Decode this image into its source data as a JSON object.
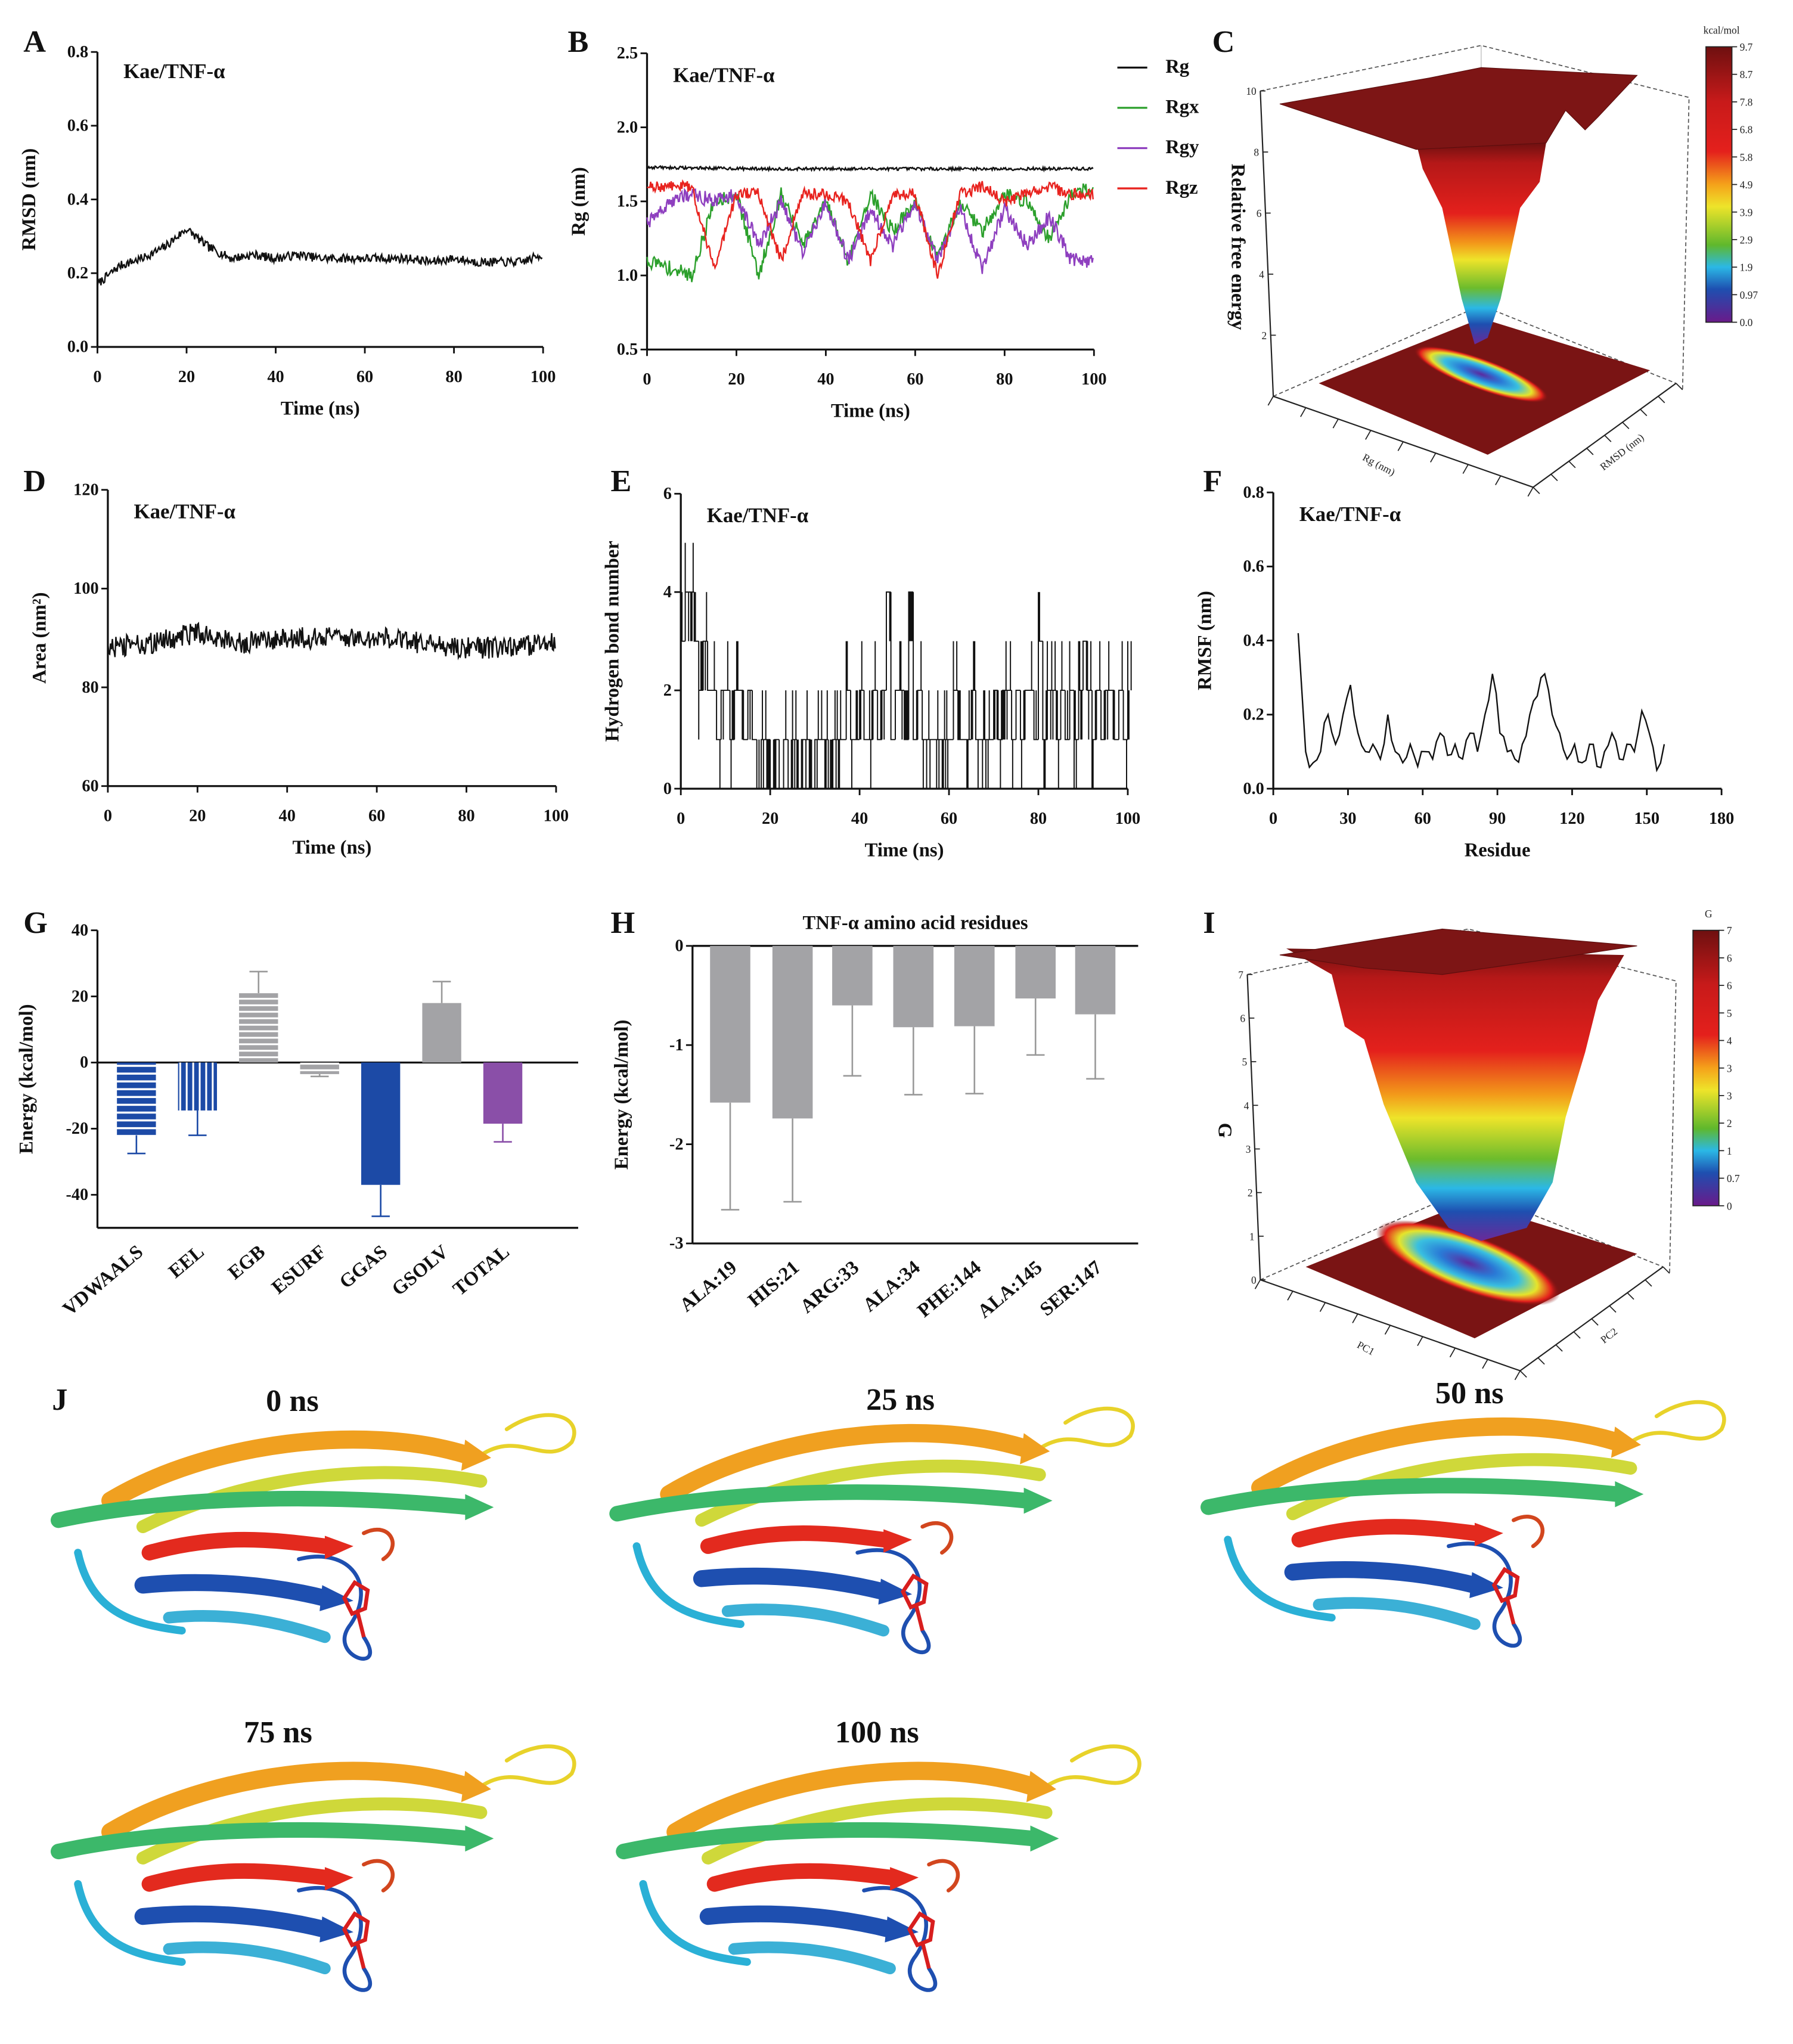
{
  "panel_letters": [
    "A",
    "B",
    "C",
    "D",
    "E",
    "F",
    "G",
    "H",
    "I",
    "J"
  ],
  "colors": {
    "black": "#111111",
    "rgx": "#2ca02c",
    "rgy": "#8e3fbf",
    "rgz": "#e8231f",
    "blue": "#1c4aa6",
    "gray": "#a3a3a6",
    "purple": "#8a4fa8"
  },
  "chart_data": [
    {
      "id": "A",
      "type": "line",
      "title": "Kae/TNF-α",
      "xlabel": "Time (ns)",
      "ylabel": "RMSD (nm)",
      "xlim": [
        0,
        100
      ],
      "ylim": [
        0,
        0.8
      ],
      "xticks": [
        "0",
        "20",
        "40",
        "60",
        "80",
        "100"
      ],
      "yticks": [
        "0.0",
        "0.2",
        "0.4",
        "0.6",
        "0.8"
      ],
      "noise_amplitude": 0.012,
      "series": [
        {
          "name": "RMSD",
          "color": "#111111",
          "x": [
            0,
            5,
            10,
            15,
            20,
            25,
            30,
            35,
            40,
            45,
            50,
            55,
            60,
            65,
            70,
            75,
            80,
            85,
            90,
            95,
            100
          ],
          "y": [
            0.17,
            0.22,
            0.24,
            0.27,
            0.32,
            0.27,
            0.24,
            0.25,
            0.24,
            0.25,
            0.24,
            0.24,
            0.24,
            0.24,
            0.24,
            0.23,
            0.24,
            0.23,
            0.23,
            0.23,
            0.25
          ]
        }
      ]
    },
    {
      "id": "B",
      "type": "line",
      "title": "Kae/TNF-α",
      "xlabel": "Time (ns)",
      "ylabel": "Rg (nm)",
      "xlim": [
        0,
        100
      ],
      "ylim": [
        0.5,
        2.5
      ],
      "xticks": [
        "0",
        "20",
        "40",
        "60",
        "80",
        "100"
      ],
      "yticks": [
        "0.5",
        "1.0",
        "1.5",
        "2.0",
        "2.5"
      ],
      "legend": "right",
      "series": [
        {
          "name": "Rg",
          "color": "#111111",
          "noise_amplitude": 0.01,
          "x": [
            0,
            25,
            50,
            75,
            100
          ],
          "y": [
            1.73,
            1.72,
            1.72,
            1.72,
            1.72
          ]
        },
        {
          "name": "Rgx",
          "color": "#2ca02c",
          "noise_amplitude": 0.05,
          "x": [
            0,
            5,
            10,
            15,
            20,
            25,
            30,
            35,
            40,
            45,
            50,
            55,
            60,
            65,
            70,
            75,
            80,
            85,
            90,
            95,
            100
          ],
          "y": [
            1.1,
            1.05,
            1.0,
            1.5,
            1.55,
            1.0,
            1.55,
            1.2,
            1.5,
            1.1,
            1.55,
            1.3,
            1.5,
            1.1,
            1.5,
            1.3,
            1.55,
            1.5,
            1.25,
            1.55,
            1.6
          ]
        },
        {
          "name": "Rgy",
          "color": "#8e3fbf",
          "noise_amplitude": 0.05,
          "x": [
            0,
            5,
            10,
            15,
            20,
            25,
            30,
            35,
            40,
            45,
            50,
            55,
            60,
            65,
            70,
            75,
            80,
            85,
            90,
            95,
            100
          ],
          "y": [
            1.35,
            1.5,
            1.55,
            1.5,
            1.55,
            1.2,
            1.5,
            1.15,
            1.5,
            1.1,
            1.45,
            1.2,
            1.5,
            1.1,
            1.45,
            1.05,
            1.45,
            1.2,
            1.4,
            1.1,
            1.1
          ]
        },
        {
          "name": "Rgz",
          "color": "#e8231f",
          "noise_amplitude": 0.04,
          "x": [
            0,
            5,
            10,
            15,
            20,
            25,
            30,
            35,
            40,
            45,
            50,
            55,
            60,
            65,
            70,
            75,
            80,
            85,
            90,
            95,
            100
          ],
          "y": [
            1.6,
            1.6,
            1.6,
            1.05,
            1.55,
            1.55,
            1.1,
            1.55,
            1.55,
            1.5,
            1.1,
            1.55,
            1.55,
            1.0,
            1.55,
            1.6,
            1.5,
            1.55,
            1.6,
            1.55,
            1.55
          ]
        }
      ]
    },
    {
      "id": "C",
      "type": "heatmap",
      "title": "",
      "zlabel": "Relative free energy",
      "xlabel": "Rg (nm)",
      "ylabel": "RMSD (nm)",
      "zticks": [
        "2",
        "4",
        "6",
        "8",
        "10"
      ],
      "colorbar_title": "kcal/mol",
      "colorbar_ticks": [
        "9.7",
        "8.7",
        "7.8",
        "6.8",
        "5.8",
        "4.9",
        "3.9",
        "2.9",
        "1.9",
        "0.97",
        "0.0"
      ]
    },
    {
      "id": "D",
      "type": "line",
      "title": "Kae/TNF-α",
      "xlabel": "Time (ns)",
      "ylabel": "Area (nm²)",
      "xlim": [
        0,
        100
      ],
      "ylim": [
        60,
        120
      ],
      "xticks": [
        "0",
        "20",
        "40",
        "60",
        "80",
        "100"
      ],
      "yticks": [
        "60",
        "80",
        "100",
        "120"
      ],
      "noise_amplitude": 2.2,
      "series": [
        {
          "name": "Area",
          "color": "#111111",
          "x": [
            0,
            10,
            20,
            30,
            40,
            50,
            60,
            70,
            80,
            90,
            100
          ],
          "y": [
            88,
            89,
            91,
            89,
            90,
            90,
            90,
            89,
            88,
            88,
            89
          ]
        }
      ]
    },
    {
      "id": "E",
      "type": "line",
      "title": "Kae/TNF-α",
      "xlabel": "Time (ns)",
      "ylabel": "Hydrogen bond number",
      "xlim": [
        0,
        100
      ],
      "ylim": [
        0,
        6
      ],
      "xticks": [
        "0",
        "20",
        "40",
        "60",
        "80",
        "100"
      ],
      "yticks": [
        "0",
        "2",
        "4",
        "6"
      ],
      "series": [
        {
          "name": "H-bonds",
          "color": "#111111",
          "x_step": 1,
          "y": [
            3,
            4,
            4,
            3,
            2,
            3,
            2,
            2,
            1,
            2,
            2,
            1,
            2,
            2,
            1,
            2,
            1,
            0,
            1,
            1,
            0,
            1,
            0,
            1,
            0,
            1,
            0,
            1,
            1,
            0,
            1,
            1,
            1,
            0,
            1,
            1,
            1,
            2,
            1,
            1,
            2,
            1,
            1,
            2,
            1,
            2,
            4,
            1,
            2,
            2,
            1,
            4,
            1,
            2,
            1,
            1,
            1,
            1,
            1,
            1,
            1,
            2,
            1,
            1,
            1,
            2,
            1,
            1,
            1,
            1,
            2,
            1,
            2,
            2,
            1,
            2,
            1,
            2,
            2,
            1,
            3,
            1,
            2,
            2,
            1,
            2,
            1,
            2,
            1,
            2,
            3,
            2,
            1,
            2,
            1,
            2,
            2,
            1,
            2,
            1,
            2
          ]
        }
      ]
    },
    {
      "id": "F",
      "type": "line",
      "title": "Kae/TNF-α",
      "xlabel": "Residue",
      "ylabel": "RMSF (nm)",
      "xlim": [
        0,
        180
      ],
      "ylim": [
        0,
        0.8
      ],
      "xticks": [
        "0",
        "30",
        "60",
        "90",
        "120",
        "150",
        "180"
      ],
      "yticks": [
        "0.0",
        "0.2",
        "0.4",
        "0.6",
        "0.8"
      ],
      "series": [
        {
          "name": "RMSF",
          "color": "#111111",
          "x": [
            10,
            13,
            16,
            19,
            22,
            25,
            28,
            31,
            34,
            37,
            40,
            43,
            46,
            49,
            52,
            55,
            58,
            61,
            64,
            67,
            70,
            73,
            76,
            79,
            82,
            85,
            88,
            91,
            94,
            97,
            100,
            103,
            106,
            109,
            112,
            115,
            118,
            121,
            124,
            127,
            130,
            133,
            136,
            139,
            142,
            145,
            148,
            151,
            154,
            157
          ],
          "y": [
            0.42,
            0.1,
            0.07,
            0.1,
            0.2,
            0.12,
            0.2,
            0.28,
            0.15,
            0.1,
            0.12,
            0.08,
            0.2,
            0.1,
            0.07,
            0.12,
            0.06,
            0.1,
            0.08,
            0.15,
            0.09,
            0.12,
            0.08,
            0.15,
            0.1,
            0.2,
            0.31,
            0.15,
            0.1,
            0.08,
            0.12,
            0.2,
            0.25,
            0.31,
            0.2,
            0.15,
            0.08,
            0.12,
            0.07,
            0.12,
            0.06,
            0.1,
            0.15,
            0.08,
            0.12,
            0.1,
            0.21,
            0.15,
            0.05,
            0.12
          ]
        }
      ]
    },
    {
      "id": "G",
      "type": "bar",
      "title": "",
      "xlabel": "",
      "ylabel": "Energy (kcal/mol)",
      "ylim": [
        -50,
        40
      ],
      "yticks": [
        "-40",
        "-20",
        "0",
        "20",
        "40"
      ],
      "categories": [
        "VDWAALS",
        "EEL",
        "EGB",
        "ESURF",
        "GGAS",
        "GSOLV",
        "TOTAL"
      ],
      "values": [
        -22,
        -14.5,
        21,
        -3.5,
        -37,
        18,
        -18.5
      ],
      "errors": [
        5.5,
        7.5,
        6.5,
        0.7,
        9.5,
        6.5,
        5.5
      ],
      "fills": [
        "blue-hstripe",
        "blue-vstripe",
        "gray-hstripe",
        "gray-hstripe",
        "#1c4aa6",
        "#a3a3a6",
        "#8a4fa8"
      ]
    },
    {
      "id": "H",
      "type": "bar",
      "title": "TNF-α amino acid residues",
      "xlabel": "",
      "ylabel": "Energy (kcal/mol)",
      "ylim": [
        -3,
        0
      ],
      "yticks": [
        "-3",
        "-2",
        "-1",
        "0"
      ],
      "categories": [
        "ALA:19",
        "HIS:21",
        "ARG:33",
        "ALA:34",
        "PHE:144",
        "ALA:145",
        "SER:147"
      ],
      "values": [
        -1.58,
        -1.74,
        -0.6,
        -0.82,
        -0.81,
        -0.53,
        -0.69
      ],
      "errors": [
        1.08,
        0.84,
        0.71,
        0.68,
        0.68,
        0.57,
        0.65
      ]
    },
    {
      "id": "I",
      "type": "heatmap",
      "title": "",
      "zlabel": "G",
      "xlabel": "PC1",
      "ylabel": "PC2",
      "zticks": [
        "0",
        "1",
        "2",
        "3",
        "4",
        "5",
        "6",
        "7"
      ],
      "colorbar_title": "G",
      "colorbar_ticks": [
        "7",
        "6",
        "6",
        "5",
        "4",
        "3",
        "3",
        "2",
        "1",
        "0.7",
        "0"
      ]
    }
  ],
  "snapshots": {
    "labels": [
      "0 ns",
      "25 ns",
      "50 ns",
      "75 ns",
      "100 ns"
    ]
  }
}
